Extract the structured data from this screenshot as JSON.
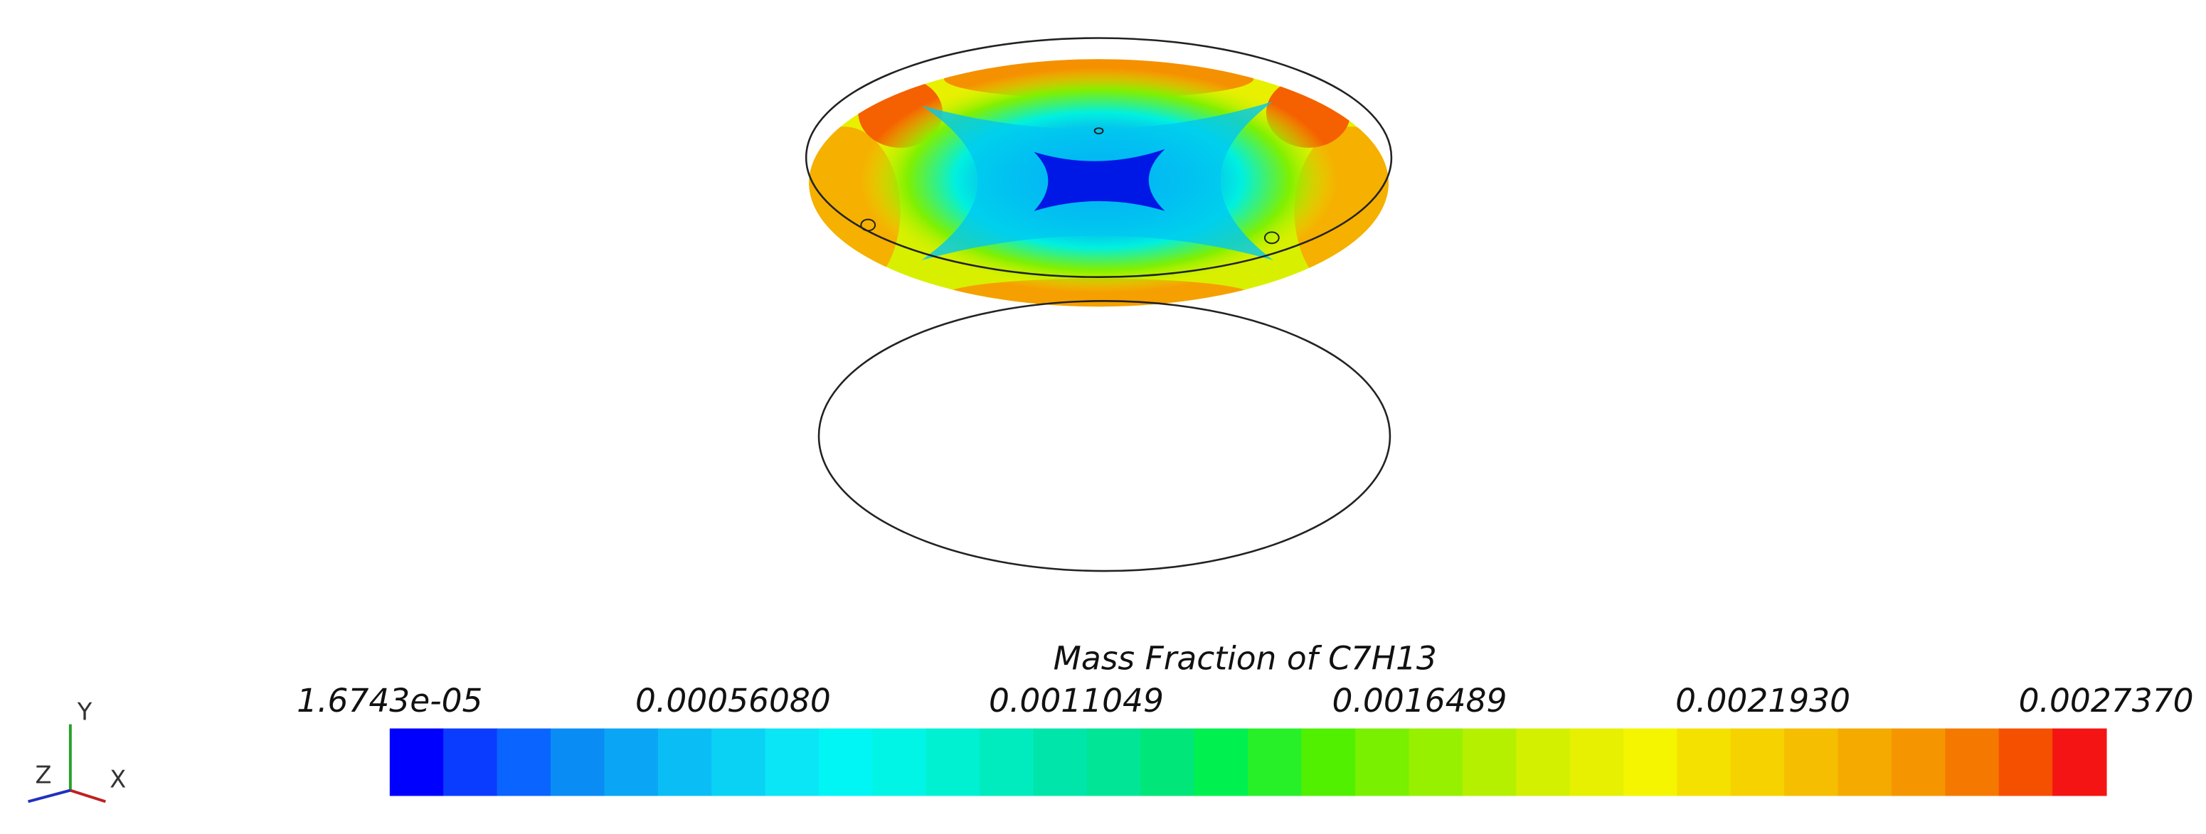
{
  "colorbar": {
    "title": "Mass Fraction of C7H13",
    "ticks": [
      {
        "value": 1.6743e-05,
        "label": "1.6743e-05"
      },
      {
        "value": 0.0005608,
        "label": "0.00056080"
      },
      {
        "value": 0.0011049,
        "label": "0.0011049"
      },
      {
        "value": 0.0016489,
        "label": "0.0016489"
      },
      {
        "value": 0.002193,
        "label": "0.0021930"
      },
      {
        "value": 0.002737,
        "label": "0.0027370"
      }
    ],
    "colors": [
      "#0000ff",
      "#0a3cff",
      "#0a64ff",
      "#0a8cf5",
      "#0aa5f5",
      "#0abef5",
      "#0ad2f5",
      "#0ae6f5",
      "#00f5f5",
      "#00f5e6",
      "#00f0d2",
      "#00ebbe",
      "#00e6aa",
      "#00e696",
      "#00e678",
      "#00f050",
      "#28f028",
      "#50f000",
      "#78f000",
      "#96f000",
      "#b4f000",
      "#d2f000",
      "#e6f000",
      "#f5f500",
      "#f5e100",
      "#f5d200",
      "#f5be00",
      "#f5aa00",
      "#f59600",
      "#f57800",
      "#f55000",
      "#f51414"
    ]
  },
  "triad": {
    "x": "X",
    "y": "Y",
    "z": "Z"
  }
}
